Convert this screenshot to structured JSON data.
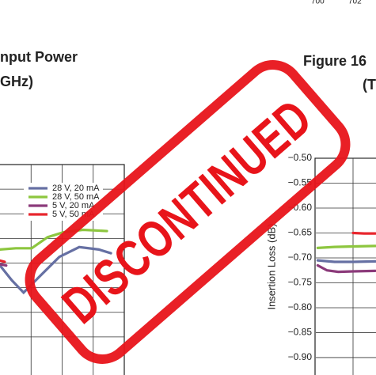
{
  "header": {
    "left": "700",
    "right": "702"
  },
  "stamp": "DISCONTINUED",
  "chart_data": [
    {
      "type": "line",
      "title": "nput Power",
      "subtitle": "GHz)",
      "xlim": [
        0,
        4
      ],
      "ylim": [
        0,
        8
      ],
      "series": [
        {
          "name": "28 V, 20 mA",
          "color": "#6670a3",
          "x": [
            0,
            0.38,
            0.76,
            1.27,
            1.91,
            2.55,
            3.18,
            3.57
          ],
          "values": [
            3.9,
            3.3,
            2.8,
            3.45,
            4.25,
            4.65,
            4.55,
            4.4
          ]
        },
        {
          "name": "28 V, 50 mA",
          "color": "#8dc63f",
          "x": [
            0,
            0.51,
            1.02,
            1.53,
            2.04,
            2.67,
            3.44
          ],
          "values": [
            4.55,
            4.6,
            4.6,
            5.05,
            5.25,
            5.35,
            5.3
          ]
        },
        {
          "name": "5 V, 20 mA",
          "color": "#8b3a7a",
          "x": [
            0,
            0.2
          ],
          "values": [
            3.95,
            3.9
          ]
        },
        {
          "name": "5 V, 50 mA",
          "color": "#e8262d",
          "x": [
            0,
            0.15
          ],
          "values": [
            4.1,
            4.05
          ]
        }
      ]
    },
    {
      "type": "line",
      "title": "Figure 16",
      "subtitle": "(T",
      "ylabel": "Insertion Loss (dB)",
      "xlim": [
        0,
        2
      ],
      "ylim": [
        -0.935,
        -0.5
      ],
      "yticks": [
        {
          "value": -0.5,
          "label": "−0.50"
        },
        {
          "value": -0.55,
          "label": "−0.55"
        },
        {
          "value": -0.6,
          "label": "−0.60"
        },
        {
          "value": -0.65,
          "label": "−0.65"
        },
        {
          "value": -0.7,
          "label": "−0.70"
        },
        {
          "value": -0.75,
          "label": "−0.75"
        },
        {
          "value": -0.8,
          "label": "−0.80"
        },
        {
          "value": -0.85,
          "label": "−0.85"
        },
        {
          "value": -0.9,
          "label": "−0.90"
        }
      ],
      "series": [
        {
          "color": "#8dc63f",
          "x": [
            0.05,
            0.5,
            1.0,
            1.6
          ],
          "values": [
            -0.68,
            -0.678,
            -0.677,
            -0.676
          ]
        },
        {
          "color": "#6670a3",
          "x": [
            0.05,
            0.5,
            1.0,
            1.6
          ],
          "values": [
            -0.705,
            -0.708,
            -0.708,
            -0.707
          ]
        },
        {
          "color": "#8b3a7a",
          "x": [
            0.05,
            0.3,
            0.6,
            1.0,
            1.6
          ],
          "values": [
            -0.715,
            -0.725,
            -0.728,
            -0.727,
            -0.726
          ]
        },
        {
          "color": "#e8262d",
          "x": [
            1.0,
            1.3,
            1.6
          ],
          "values": [
            -0.65,
            -0.651,
            -0.651
          ]
        }
      ]
    }
  ]
}
